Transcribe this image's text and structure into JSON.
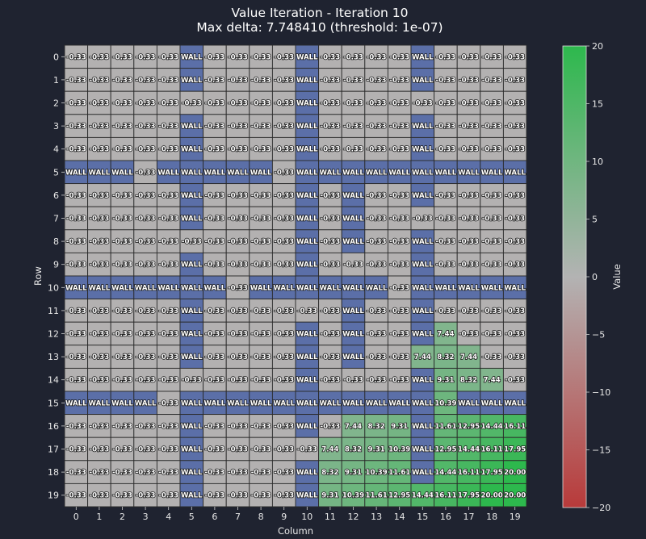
{
  "chart_data": {
    "type": "heatmap",
    "title": "Value Iteration - Iteration 10",
    "subtitle": "Max delta: 7.748410 (threshold: 1e-07)",
    "xlabel": "Column",
    "ylabel": "Row",
    "x_ticks": [
      "0",
      "1",
      "2",
      "3",
      "4",
      "5",
      "6",
      "7",
      "8",
      "9",
      "10",
      "11",
      "12",
      "13",
      "14",
      "15",
      "16",
      "17",
      "18",
      "19"
    ],
    "y_ticks": [
      "0",
      "1",
      "2",
      "3",
      "4",
      "5",
      "6",
      "7",
      "8",
      "9",
      "10",
      "11",
      "12",
      "13",
      "14",
      "15",
      "16",
      "17",
      "18",
      "19"
    ],
    "colorbar": {
      "label": "Value",
      "range": [
        -20,
        20
      ],
      "ticks": [
        "20",
        "15",
        "10",
        "5",
        "0",
        "−5",
        "−10",
        "−15",
        "−20"
      ],
      "colors": {
        "low": "#b83a3a",
        "mid": "#b3b3b3",
        "high": "#2db84d"
      }
    },
    "wall_label": "WALL",
    "wall_color": "#5b6fa8",
    "grid": [
      [
        "-0.33",
        "-0.33",
        "-0.33",
        "-0.33",
        "-0.33",
        "WALL",
        "-0.33",
        "-0.33",
        "-0.33",
        "-0.33",
        "WALL",
        "-0.33",
        "-0.33",
        "-0.33",
        "-0.33",
        "WALL",
        "-0.33",
        "-0.33",
        "-0.33",
        "-0.33"
      ],
      [
        "-0.33",
        "-0.33",
        "-0.33",
        "-0.33",
        "-0.33",
        "WALL",
        "-0.33",
        "-0.33",
        "-0.33",
        "-0.33",
        "WALL",
        "-0.33",
        "-0.33",
        "-0.33",
        "-0.33",
        "WALL",
        "-0.33",
        "-0.33",
        "-0.33",
        "-0.33"
      ],
      [
        "-0.33",
        "-0.33",
        "-0.33",
        "-0.33",
        "-0.33",
        "-0.33",
        "-0.33",
        "-0.33",
        "-0.33",
        "-0.33",
        "WALL",
        "-0.33",
        "-0.33",
        "-0.33",
        "-0.33",
        "-0.33",
        "-0.33",
        "-0.33",
        "-0.33",
        "-0.33"
      ],
      [
        "-0.33",
        "-0.33",
        "-0.33",
        "-0.33",
        "-0.33",
        "WALL",
        "-0.33",
        "-0.33",
        "-0.33",
        "-0.33",
        "WALL",
        "-0.33",
        "-0.33",
        "-0.33",
        "-0.33",
        "WALL",
        "-0.33",
        "-0.33",
        "-0.33",
        "-0.33"
      ],
      [
        "-0.33",
        "-0.33",
        "-0.33",
        "-0.33",
        "-0.33",
        "WALL",
        "-0.33",
        "-0.33",
        "-0.33",
        "-0.33",
        "WALL",
        "-0.33",
        "-0.33",
        "-0.33",
        "-0.33",
        "WALL",
        "-0.33",
        "-0.33",
        "-0.33",
        "-0.33"
      ],
      [
        "WALL",
        "WALL",
        "WALL",
        "-0.33",
        "WALL",
        "WALL",
        "WALL",
        "WALL",
        "WALL",
        "-0.33",
        "WALL",
        "WALL",
        "WALL",
        "WALL",
        "WALL",
        "WALL",
        "WALL",
        "WALL",
        "WALL",
        "WALL"
      ],
      [
        "-0.33",
        "-0.33",
        "-0.33",
        "-0.33",
        "-0.33",
        "WALL",
        "-0.33",
        "-0.33",
        "-0.33",
        "-0.33",
        "WALL",
        "-0.33",
        "WALL",
        "-0.33",
        "-0.33",
        "WALL",
        "-0.33",
        "-0.33",
        "-0.33",
        "-0.33"
      ],
      [
        "-0.33",
        "-0.33",
        "-0.33",
        "-0.33",
        "-0.33",
        "WALL",
        "-0.33",
        "-0.33",
        "-0.33",
        "-0.33",
        "WALL",
        "-0.33",
        "WALL",
        "-0.33",
        "-0.33",
        "-0.33",
        "-0.33",
        "-0.33",
        "-0.33",
        "-0.33"
      ],
      [
        "-0.33",
        "-0.33",
        "-0.33",
        "-0.33",
        "-0.33",
        "-0.33",
        "-0.33",
        "-0.33",
        "-0.33",
        "-0.33",
        "WALL",
        "-0.33",
        "WALL",
        "-0.33",
        "-0.33",
        "WALL",
        "-0.33",
        "-0.33",
        "-0.33",
        "-0.33"
      ],
      [
        "-0.33",
        "-0.33",
        "-0.33",
        "-0.33",
        "-0.33",
        "WALL",
        "-0.33",
        "-0.33",
        "-0.33",
        "-0.33",
        "WALL",
        "-0.33",
        "-0.33",
        "-0.33",
        "-0.33",
        "WALL",
        "-0.33",
        "-0.33",
        "-0.33",
        "-0.33"
      ],
      [
        "WALL",
        "WALL",
        "WALL",
        "WALL",
        "WALL",
        "WALL",
        "WALL",
        "-0.33",
        "WALL",
        "WALL",
        "WALL",
        "WALL",
        "WALL",
        "WALL",
        "-0.33",
        "WALL",
        "WALL",
        "WALL",
        "WALL",
        "WALL"
      ],
      [
        "-0.33",
        "-0.33",
        "-0.33",
        "-0.33",
        "-0.33",
        "WALL",
        "-0.33",
        "-0.33",
        "-0.33",
        "-0.33",
        "-0.33",
        "-0.33",
        "WALL",
        "-0.33",
        "-0.33",
        "WALL",
        "-0.33",
        "-0.33",
        "-0.33",
        "-0.33"
      ],
      [
        "-0.33",
        "-0.33",
        "-0.33",
        "-0.33",
        "-0.33",
        "WALL",
        "-0.33",
        "-0.33",
        "-0.33",
        "-0.33",
        "WALL",
        "-0.33",
        "WALL",
        "-0.33",
        "-0.33",
        "WALL",
        "7.44",
        "-0.33",
        "-0.33",
        "-0.33"
      ],
      [
        "-0.33",
        "-0.33",
        "-0.33",
        "-0.33",
        "-0.33",
        "WALL",
        "-0.33",
        "-0.33",
        "-0.33",
        "-0.33",
        "WALL",
        "-0.33",
        "WALL",
        "-0.33",
        "-0.33",
        "7.44",
        "8.32",
        "7.44",
        "-0.33",
        "-0.33"
      ],
      [
        "-0.33",
        "-0.33",
        "-0.33",
        "-0.33",
        "-0.33",
        "-0.33",
        "-0.33",
        "-0.33",
        "-0.33",
        "-0.33",
        "WALL",
        "-0.33",
        "-0.33",
        "-0.33",
        "-0.33",
        "WALL",
        "9.31",
        "8.32",
        "7.44",
        "-0.33"
      ],
      [
        "WALL",
        "WALL",
        "WALL",
        "WALL",
        "-0.33",
        "WALL",
        "WALL",
        "WALL",
        "WALL",
        "WALL",
        "WALL",
        "WALL",
        "WALL",
        "WALL",
        "WALL",
        "WALL",
        "10.39",
        "WALL",
        "WALL",
        "WALL"
      ],
      [
        "-0.33",
        "-0.33",
        "-0.33",
        "-0.33",
        "-0.33",
        "WALL",
        "-0.33",
        "-0.33",
        "-0.33",
        "-0.33",
        "WALL",
        "-0.33",
        "7.44",
        "8.32",
        "9.31",
        "WALL",
        "11.61",
        "12.95",
        "14.44",
        "16.11"
      ],
      [
        "-0.33",
        "-0.33",
        "-0.33",
        "-0.33",
        "-0.33",
        "WALL",
        "-0.33",
        "-0.33",
        "-0.33",
        "-0.33",
        "-0.33",
        "7.44",
        "8.32",
        "9.31",
        "10.39",
        "WALL",
        "12.95",
        "14.44",
        "16.11",
        "17.95"
      ],
      [
        "-0.33",
        "-0.33",
        "-0.33",
        "-0.33",
        "-0.33",
        "WALL",
        "-0.33",
        "-0.33",
        "-0.33",
        "-0.33",
        "WALL",
        "8.32",
        "9.31",
        "10.39",
        "11.61",
        "WALL",
        "14.44",
        "16.11",
        "17.95",
        "20.00"
      ],
      [
        "-0.33",
        "-0.33",
        "-0.33",
        "-0.33",
        "-0.33",
        "WALL",
        "-0.33",
        "-0.33",
        "-0.33",
        "-0.33",
        "WALL",
        "9.31",
        "10.39",
        "11.61",
        "12.95",
        "14.44",
        "16.11",
        "17.95",
        "20.00",
        "20.00"
      ]
    ]
  }
}
